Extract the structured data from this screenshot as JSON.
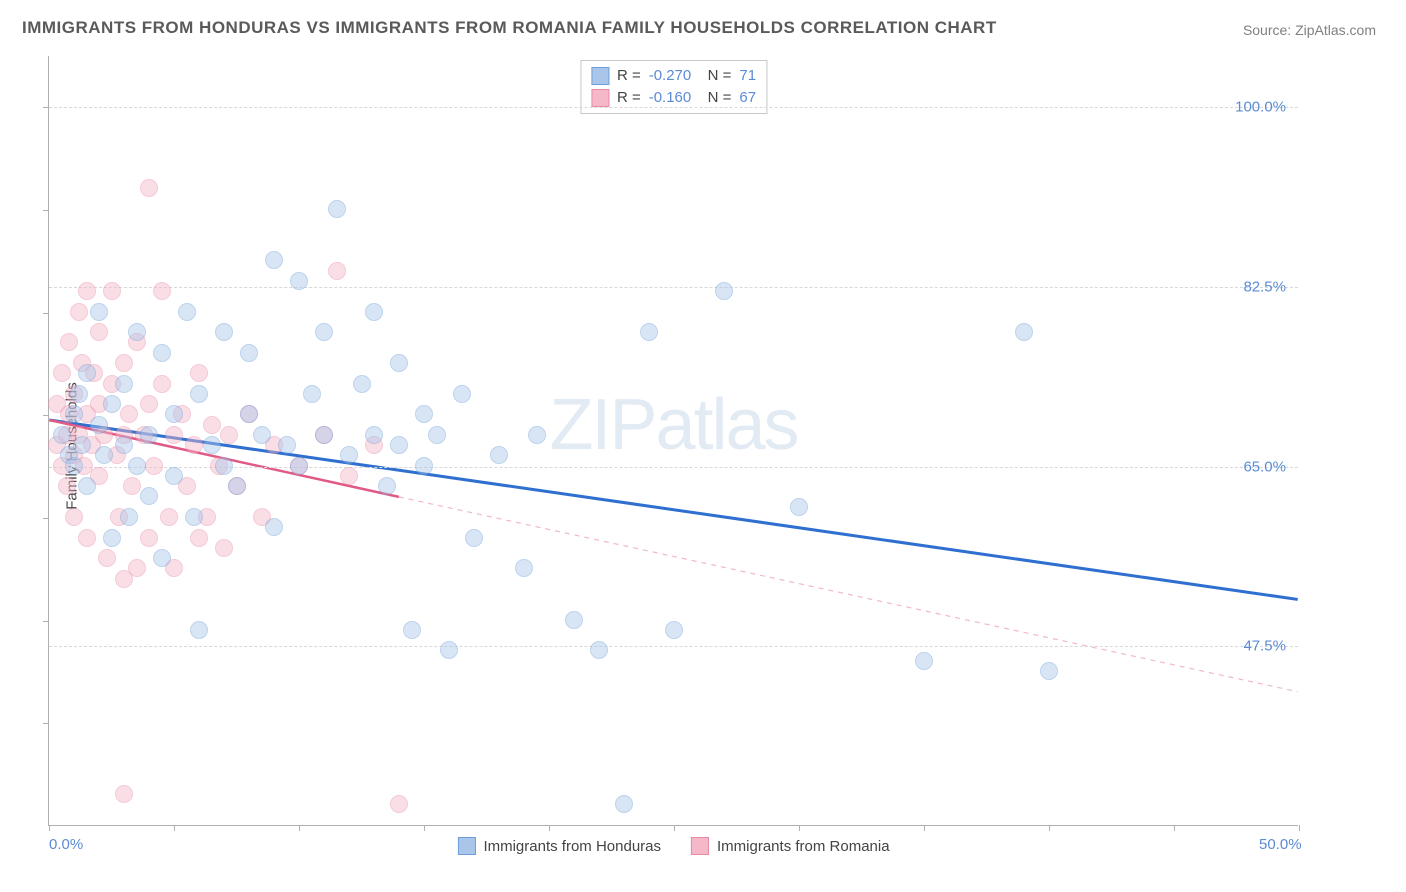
{
  "title": "IMMIGRANTS FROM HONDURAS VS IMMIGRANTS FROM ROMANIA FAMILY HOUSEHOLDS CORRELATION CHART",
  "source": "Source: ZipAtlas.com",
  "watermark_bold": "ZIP",
  "watermark_thin": "atlas",
  "ylabel": "Family Households",
  "chart": {
    "type": "scatter",
    "xlim": [
      0,
      50
    ],
    "ylim": [
      30,
      105
    ],
    "x_ticks": [
      0,
      50
    ],
    "x_tick_labels": [
      "0.0%",
      "50.0%"
    ],
    "x_minor_ticks": [
      5,
      10,
      15,
      20,
      25,
      30,
      35,
      40,
      45
    ],
    "y_gridlines": [
      47.5,
      65.0,
      82.5,
      100.0
    ],
    "y_gridline_labels": [
      "47.5%",
      "65.0%",
      "82.5%",
      "100.0%"
    ],
    "background_color": "#ffffff",
    "grid_color": "#d8d8d8",
    "axis_color": "#b0b0b0",
    "point_radius": 9,
    "point_opacity": 0.45,
    "series": [
      {
        "name": "Immigrants from Honduras",
        "color_fill": "#a9c6ea",
        "color_stroke": "#6f9fd8",
        "R": "-0.270",
        "N": "71",
        "trend": {
          "x1": 0,
          "y1": 69.5,
          "x2": 50,
          "y2": 52,
          "color": "#2f6fd0",
          "width": 3,
          "dash": "none",
          "extrapolate_dash": false
        },
        "points": [
          [
            0.5,
            68
          ],
          [
            0.8,
            66
          ],
          [
            1,
            70
          ],
          [
            1,
            65
          ],
          [
            1.2,
            72
          ],
          [
            1.3,
            67
          ],
          [
            1.5,
            74
          ],
          [
            1.5,
            63
          ],
          [
            2,
            69
          ],
          [
            2,
            80
          ],
          [
            2.2,
            66
          ],
          [
            2.5,
            71
          ],
          [
            2.5,
            58
          ],
          [
            3,
            67
          ],
          [
            3,
            73
          ],
          [
            3.2,
            60
          ],
          [
            3.5,
            78
          ],
          [
            3.5,
            65
          ],
          [
            4,
            68
          ],
          [
            4,
            62
          ],
          [
            4.5,
            76
          ],
          [
            4.5,
            56
          ],
          [
            5,
            70
          ],
          [
            5,
            64
          ],
          [
            5.5,
            80
          ],
          [
            5.8,
            60
          ],
          [
            6,
            72
          ],
          [
            6,
            49
          ],
          [
            6.5,
            67
          ],
          [
            7,
            78
          ],
          [
            7,
            65
          ],
          [
            7.5,
            63
          ],
          [
            8,
            70
          ],
          [
            8,
            76
          ],
          [
            8.5,
            68
          ],
          [
            9,
            85
          ],
          [
            9,
            59
          ],
          [
            9.5,
            67
          ],
          [
            10,
            83
          ],
          [
            10,
            65
          ],
          [
            10.5,
            72
          ],
          [
            11,
            68
          ],
          [
            11,
            78
          ],
          [
            11.5,
            90
          ],
          [
            12,
            66
          ],
          [
            12.5,
            73
          ],
          [
            13,
            68
          ],
          [
            13,
            80
          ],
          [
            13.5,
            63
          ],
          [
            14,
            67
          ],
          [
            14,
            75
          ],
          [
            14.5,
            49
          ],
          [
            15,
            70
          ],
          [
            15,
            65
          ],
          [
            15.5,
            68
          ],
          [
            16,
            47
          ],
          [
            16.5,
            72
          ],
          [
            17,
            58
          ],
          [
            18,
            66
          ],
          [
            19,
            55
          ],
          [
            19.5,
            68
          ],
          [
            21,
            50
          ],
          [
            22,
            47
          ],
          [
            23,
            32
          ],
          [
            24,
            78
          ],
          [
            25,
            49
          ],
          [
            27,
            82
          ],
          [
            30,
            61
          ],
          [
            35,
            46
          ],
          [
            39,
            78
          ],
          [
            40,
            45
          ]
        ]
      },
      {
        "name": "Immigrants from Romania",
        "color_fill": "#f5b8c8",
        "color_stroke": "#e88aa6",
        "R": "-0.160",
        "N": "67",
        "trend": {
          "x1": 0,
          "y1": 69.5,
          "x2": 14,
          "y2": 62,
          "extend_x2": 50,
          "extend_y2": 43,
          "color": "#e05a85",
          "width": 2.5,
          "dash": "none",
          "extrapolate_dash": true,
          "dash_color": "#f0b8c8"
        },
        "points": [
          [
            0.3,
            67
          ],
          [
            0.3,
            71
          ],
          [
            0.5,
            65
          ],
          [
            0.5,
            74
          ],
          [
            0.7,
            68
          ],
          [
            0.7,
            63
          ],
          [
            0.8,
            77
          ],
          [
            0.8,
            70
          ],
          [
            1,
            66
          ],
          [
            1,
            72
          ],
          [
            1,
            60
          ],
          [
            1.2,
            80
          ],
          [
            1.2,
            68
          ],
          [
            1.3,
            75
          ],
          [
            1.4,
            65
          ],
          [
            1.5,
            82
          ],
          [
            1.5,
            70
          ],
          [
            1.5,
            58
          ],
          [
            1.7,
            67
          ],
          [
            1.8,
            74
          ],
          [
            2,
            71
          ],
          [
            2,
            64
          ],
          [
            2,
            78
          ],
          [
            2.2,
            68
          ],
          [
            2.3,
            56
          ],
          [
            2.5,
            73
          ],
          [
            2.5,
            82
          ],
          [
            2.7,
            66
          ],
          [
            2.8,
            60
          ],
          [
            3,
            75
          ],
          [
            3,
            68
          ],
          [
            3,
            54
          ],
          [
            3.2,
            70
          ],
          [
            3.3,
            63
          ],
          [
            3.5,
            77
          ],
          [
            3.5,
            55
          ],
          [
            3.8,
            68
          ],
          [
            4,
            71
          ],
          [
            4,
            58
          ],
          [
            4,
            92
          ],
          [
            4.2,
            65
          ],
          [
            4.5,
            73
          ],
          [
            4.5,
            82
          ],
          [
            4.8,
            60
          ],
          [
            5,
            68
          ],
          [
            5,
            55
          ],
          [
            5.3,
            70
          ],
          [
            5.5,
            63
          ],
          [
            5.8,
            67
          ],
          [
            6,
            74
          ],
          [
            6,
            58
          ],
          [
            6.3,
            60
          ],
          [
            6.5,
            69
          ],
          [
            6.8,
            65
          ],
          [
            7,
            57
          ],
          [
            7.2,
            68
          ],
          [
            7.5,
            63
          ],
          [
            8,
            70
          ],
          [
            8.5,
            60
          ],
          [
            9,
            67
          ],
          [
            10,
            65
          ],
          [
            11,
            68
          ],
          [
            11.5,
            84
          ],
          [
            12,
            64
          ],
          [
            13,
            67
          ],
          [
            14,
            32
          ],
          [
            3,
            33
          ]
        ]
      }
    ]
  },
  "bottom_legend": [
    {
      "label": "Immigrants from Honduras",
      "fill": "#a9c6ea",
      "stroke": "#6f9fd8"
    },
    {
      "label": "Immigrants from Romania",
      "fill": "#f5b8c8",
      "stroke": "#e88aa6"
    }
  ]
}
